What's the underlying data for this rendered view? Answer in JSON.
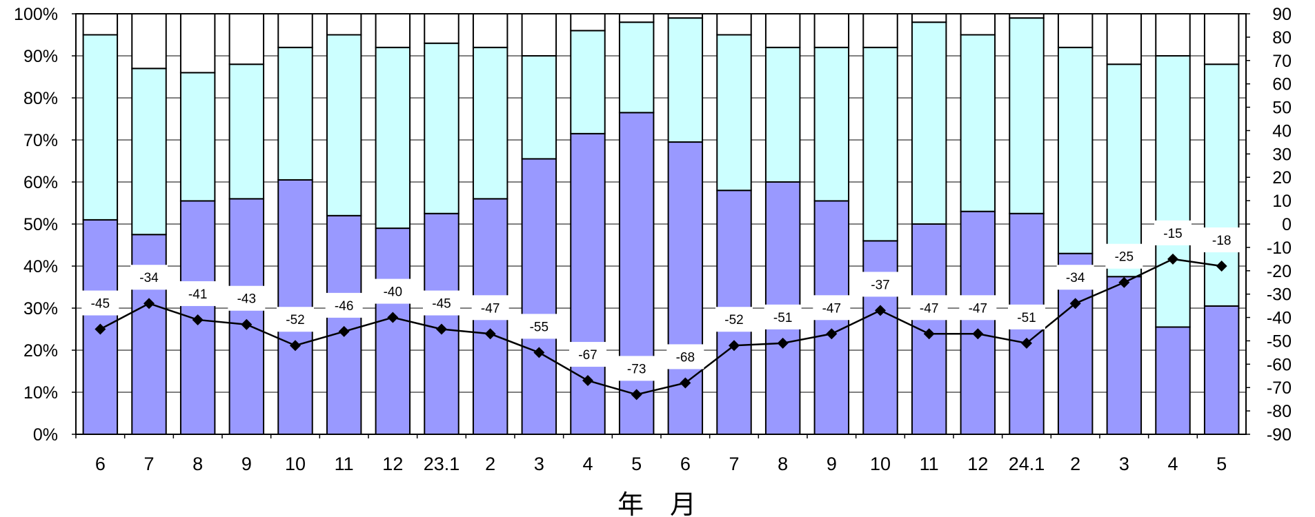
{
  "chart_data": {
    "type": "bar",
    "stacked_percent": true,
    "xlabel": "年　月",
    "categories": [
      "6",
      "7",
      "8",
      "9",
      "10",
      "11",
      "12",
      "23.1",
      "2",
      "3",
      "4",
      "5",
      "6",
      "7",
      "8",
      "9",
      "10",
      "11",
      "12",
      "24.1",
      "2",
      "3",
      "4",
      "5"
    ],
    "left_axis": {
      "ylim": [
        0,
        100
      ],
      "ticks": [
        "0%",
        "10%",
        "20%",
        "30%",
        "40%",
        "50%",
        "60%",
        "70%",
        "80%",
        "90%",
        "100%"
      ]
    },
    "right_axis": {
      "ylim": [
        -90,
        90
      ],
      "ticks": [
        "-90",
        "-80",
        "-70",
        "-60",
        "-50",
        "-40",
        "-30",
        "-20",
        "-10",
        "0",
        "10",
        "20",
        "30",
        "40",
        "50",
        "60",
        "70",
        "80",
        "90"
      ]
    },
    "series": [
      {
        "color": "#9999ff",
        "values": [
          51,
          47.5,
          55.5,
          56,
          60.5,
          52,
          49,
          52.5,
          56,
          65.5,
          71.5,
          76.5,
          69.5,
          58,
          60,
          55.5,
          46,
          50,
          53,
          52.5,
          43,
          37.5,
          25.5,
          30.5
        ]
      },
      {
        "color": "#ccffff",
        "values": [
          44,
          39.5,
          30.5,
          32,
          31.5,
          43,
          43,
          40.5,
          36,
          24.5,
          24.5,
          21.5,
          29.5,
          37,
          32,
          36.5,
          46,
          48,
          42,
          46.5,
          49,
          50.5,
          64.5,
          57.5
        ]
      },
      {
        "color": "#ffffff",
        "values": [
          5,
          13,
          14,
          12,
          8,
          5,
          8,
          7,
          8,
          10,
          4,
          2,
          1,
          5,
          8,
          8,
          8,
          2,
          5,
          1,
          8,
          12,
          10,
          12
        ]
      }
    ],
    "line": {
      "axis": "right",
      "marker": "diamond",
      "color": "#000000",
      "values": [
        -45,
        -34,
        -41,
        -43,
        -52,
        -46,
        -40,
        -45,
        -47,
        -55,
        -67,
        -73,
        -68,
        -52,
        -51,
        -47,
        -37,
        -47,
        -47,
        -51,
        -34,
        -25,
        -15,
        -18
      ],
      "labels": [
        "-45",
        "-34",
        "-41",
        "-43",
        "-52",
        "-46",
        "-40",
        "-45",
        "-47",
        "-55",
        "-67",
        "-73",
        "-68",
        "-52",
        "-51",
        "-47",
        "-37",
        "-47",
        "-47",
        "-51",
        "-34",
        "-25",
        "-15",
        "-18"
      ]
    },
    "grid": true
  }
}
